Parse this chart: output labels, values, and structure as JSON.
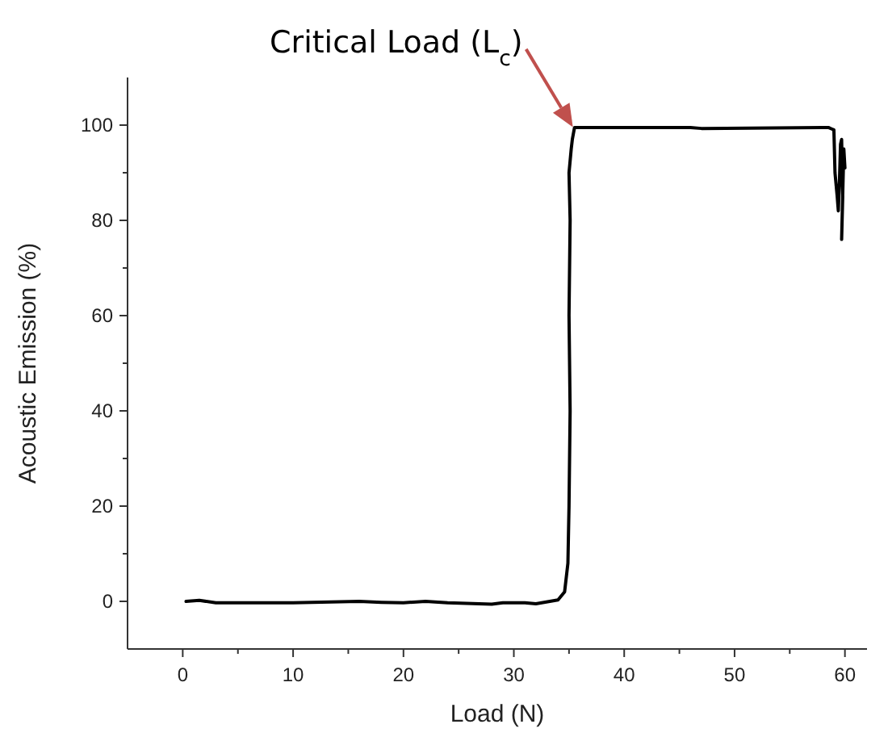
{
  "chart_data": {
    "type": "line",
    "xlabel": "Load (N)",
    "ylabel": "Acoustic Emission (%)",
    "xlim": [
      -5,
      62
    ],
    "ylim": [
      -10,
      110
    ],
    "xticks": [
      0,
      {
        "value": 5,
        "label": null
      },
      10,
      {
        "value": 15,
        "label": null
      },
      20,
      {
        "value": 25,
        "label": null
      },
      30,
      {
        "value": 35,
        "label": null
      },
      40,
      {
        "value": 45,
        "label": null
      },
      50,
      {
        "value": 55,
        "label": null
      },
      60
    ],
    "yticks": [
      0,
      {
        "value": 10,
        "label": null
      },
      20,
      {
        "value": 30,
        "label": null
      },
      40,
      {
        "value": 50,
        "label": null
      },
      60,
      {
        "value": 70,
        "label": null
      },
      80,
      {
        "value": 90,
        "label": null
      },
      100
    ],
    "series": [
      {
        "color": "#000000",
        "x": [
          0.3,
          1.5,
          3,
          10,
          16,
          18,
          20,
          22,
          24,
          28,
          29,
          31,
          32,
          34,
          34.6,
          34.9,
          35,
          35.1,
          35.0,
          35.1,
          35.0,
          35.2,
          35.3,
          35.5,
          35.8,
          46,
          47,
          58.5,
          58.8,
          59,
          59.1,
          59.3,
          59.4,
          59.5,
          59.6,
          59.7,
          59.8,
          59.7,
          59.9,
          60
        ],
        "values": [
          0,
          0.2,
          -0.3,
          -0.3,
          0,
          -0.2,
          -0.3,
          0,
          -0.3,
          -0.6,
          -0.3,
          -0.3,
          -0.5,
          0.3,
          2,
          8,
          20,
          40,
          60,
          80,
          90,
          95,
          97,
          99.5,
          99.5,
          99.5,
          99.3,
          99.5,
          99.2,
          99,
          90,
          85,
          82,
          88,
          96,
          97,
          85,
          76,
          95,
          91
        ]
      }
    ],
    "line_style": "solid",
    "marker": "none",
    "grid": false,
    "annotations": [
      {
        "text": "Critical Load (L$_{c}$)",
        "x": 35.5,
        "y": 99
      }
    ]
  }
}
